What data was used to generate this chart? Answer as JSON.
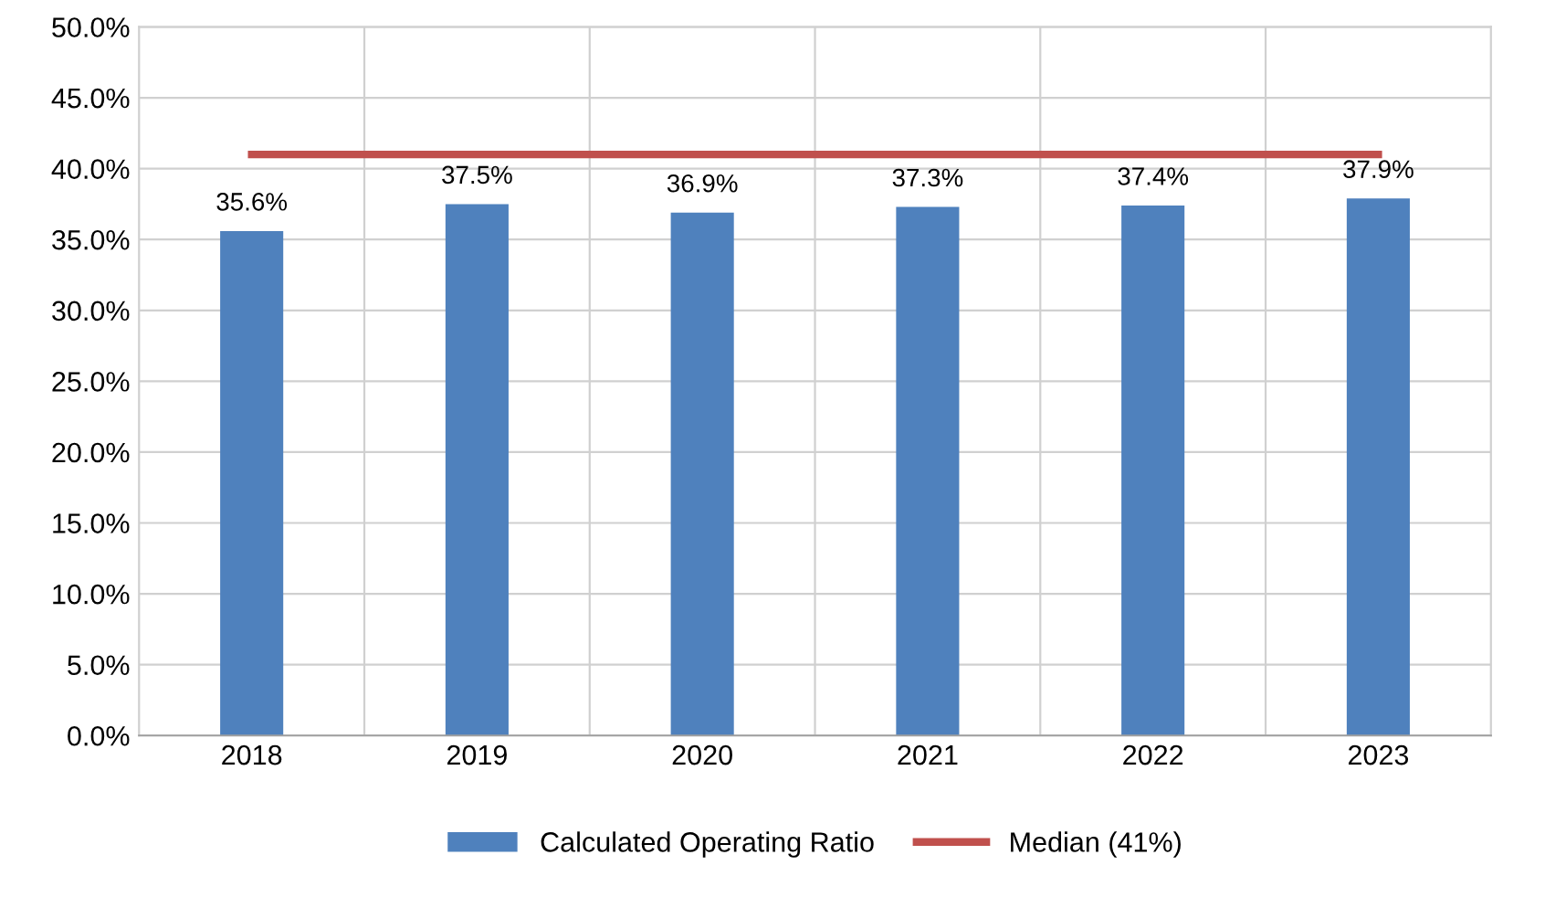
{
  "chart_data": {
    "type": "bar",
    "categories": [
      "2018",
      "2019",
      "2020",
      "2021",
      "2022",
      "2023"
    ],
    "series": [
      {
        "name": "Calculated Operating Ratio",
        "color": "#4f81bd",
        "values": [
          35.6,
          37.5,
          36.9,
          37.3,
          37.4,
          37.9
        ],
        "value_labels": [
          "35.6%",
          "37.5%",
          "36.9%",
          "37.3%",
          "37.4%",
          "37.9%"
        ]
      },
      {
        "name": "Median (41%)",
        "type": "line",
        "color": "#c0504d",
        "values": [
          41,
          41,
          41,
          41,
          41,
          41
        ]
      }
    ],
    "ylim": [
      0,
      50
    ],
    "yticks": [
      {
        "value": 0,
        "label": "0.0%"
      },
      {
        "value": 5,
        "label": "5.0%"
      },
      {
        "value": 10,
        "label": "10.0%"
      },
      {
        "value": 15,
        "label": "15.0%"
      },
      {
        "value": 20,
        "label": "20.0%"
      },
      {
        "value": 25,
        "label": "25.0%"
      },
      {
        "value": 30,
        "label": "30.0%"
      },
      {
        "value": 35,
        "label": "35.0%"
      },
      {
        "value": 40,
        "label": "40.0%"
      },
      {
        "value": 45,
        "label": "45.0%"
      },
      {
        "value": 50,
        "label": "50.0%"
      }
    ],
    "grid": true,
    "legend": "bottom",
    "marker": "none",
    "line_style": "solid"
  }
}
